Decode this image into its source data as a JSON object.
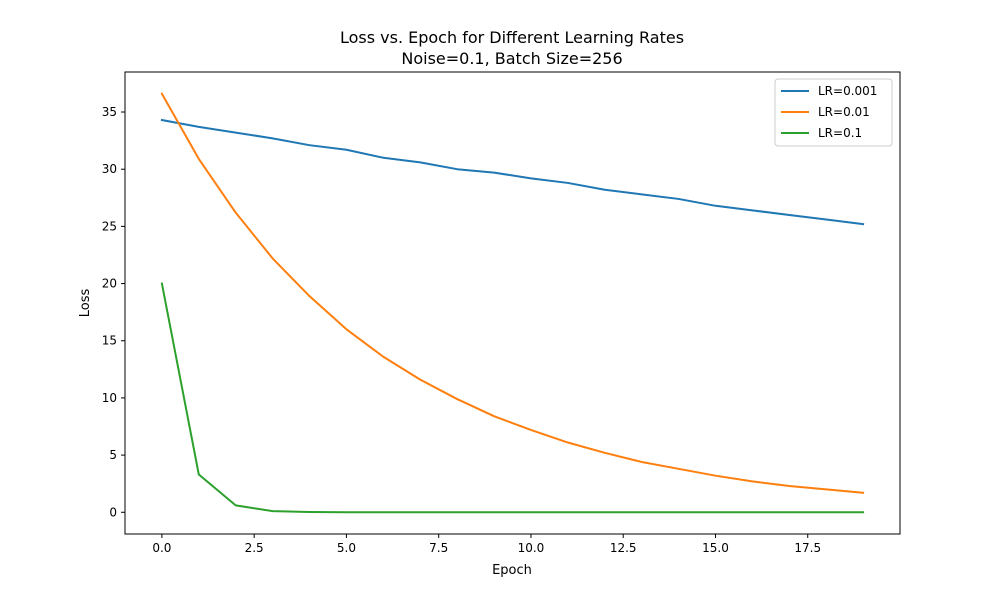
{
  "chart_data": {
    "type": "line",
    "title": "Loss vs. Epoch for Different Learning Rates",
    "subtitle": "Noise=0.1, Batch Size=256",
    "xlabel": "Epoch",
    "ylabel": "Loss",
    "xlim": [
      -1.0,
      20.0
    ],
    "ylim": [
      -1.9,
      38.5
    ],
    "x_ticks": [
      0.0,
      2.5,
      5.0,
      7.5,
      10.0,
      12.5,
      15.0,
      17.5
    ],
    "x_tick_labels": [
      "0.0",
      "2.5",
      "5.0",
      "7.5",
      "10.0",
      "12.5",
      "15.0",
      "17.5"
    ],
    "y_ticks": [
      0,
      5,
      10,
      15,
      20,
      25,
      30,
      35
    ],
    "y_tick_labels": [
      "0",
      "5",
      "10",
      "15",
      "20",
      "25",
      "30",
      "35"
    ],
    "grid": false,
    "legend_position": "top-right",
    "x": [
      0,
      1,
      2,
      3,
      4,
      5,
      6,
      7,
      8,
      9,
      10,
      11,
      12,
      13,
      14,
      15,
      16,
      17,
      18,
      19
    ],
    "series": [
      {
        "name": "LR=0.001",
        "color": "#1f77b4",
        "values": [
          34.3,
          33.7,
          33.2,
          32.7,
          32.1,
          31.7,
          31.0,
          30.6,
          30.0,
          29.7,
          29.2,
          28.8,
          28.2,
          27.8,
          27.4,
          26.8,
          26.4,
          26.0,
          25.6,
          25.2
        ]
      },
      {
        "name": "LR=0.01",
        "color": "#ff7f0e",
        "values": [
          36.6,
          30.9,
          26.2,
          22.2,
          18.9,
          16.0,
          13.6,
          11.6,
          9.9,
          8.4,
          7.2,
          6.1,
          5.2,
          4.4,
          3.8,
          3.2,
          2.7,
          2.3,
          2.0,
          1.7
        ]
      },
      {
        "name": "LR=0.1",
        "color": "#2ca02c",
        "values": [
          20.0,
          3.3,
          0.6,
          0.1,
          0.02,
          0.0,
          0.0,
          0.0,
          0.0,
          0.0,
          0.0,
          0.0,
          0.0,
          0.0,
          0.0,
          0.0,
          0.0,
          0.0,
          0.0,
          0.0
        ]
      }
    ]
  }
}
